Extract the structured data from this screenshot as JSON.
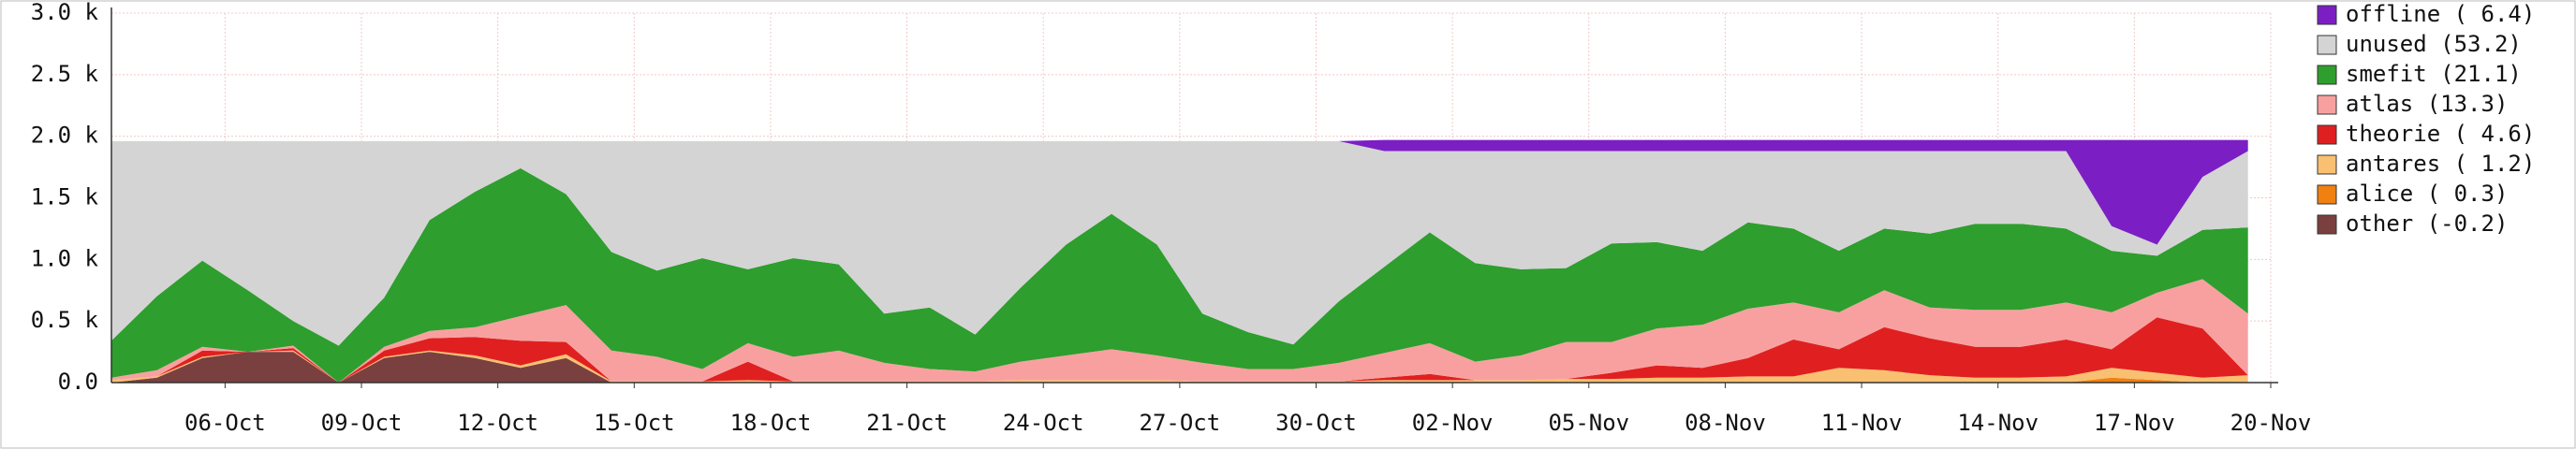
{
  "chart_data": {
    "type": "stacked_area",
    "x": [
      -2.5,
      -1.5,
      -0.5,
      0.5,
      1.5,
      2.5,
      3.5,
      4.5,
      5.5,
      6.5,
      7.5,
      8.5,
      9.5,
      10.5,
      11.5,
      12.5,
      13.5,
      14.5,
      15.5,
      16.5,
      17.5,
      18.5,
      19.5,
      20.5,
      21.5,
      22.5,
      23.5,
      24.5,
      25.5,
      26.5,
      27.5,
      28.5,
      29.5,
      30.5,
      31.5,
      32.5,
      33.5,
      34.5,
      35.5,
      36.5,
      37.5,
      38.5,
      39.5,
      40.5,
      41.5,
      42.5,
      43.5,
      44.5
    ],
    "xlim": [
      -2.5,
      45
    ],
    "xticks": [
      {
        "value": 0,
        "label": "06-Oct"
      },
      {
        "value": 3,
        "label": "09-Oct"
      },
      {
        "value": 6,
        "label": "12-Oct"
      },
      {
        "value": 9,
        "label": "15-Oct"
      },
      {
        "value": 12,
        "label": "18-Oct"
      },
      {
        "value": 15,
        "label": "21-Oct"
      },
      {
        "value": 18,
        "label": "24-Oct"
      },
      {
        "value": 21,
        "label": "27-Oct"
      },
      {
        "value": 24,
        "label": "30-Oct"
      },
      {
        "value": 27,
        "label": "02-Nov"
      },
      {
        "value": 30,
        "label": "05-Nov"
      },
      {
        "value": 33,
        "label": "08-Nov"
      },
      {
        "value": 36,
        "label": "11-Nov"
      },
      {
        "value": 39,
        "label": "14-Nov"
      },
      {
        "value": 42,
        "label": "17-Nov"
      },
      {
        "value": 45,
        "label": "20-Nov"
      }
    ],
    "ylim": [
      0,
      3000
    ],
    "yticks": [
      {
        "value": 0,
        "label": "0.0"
      },
      {
        "value": 500,
        "label": "0.5 k"
      },
      {
        "value": 1000,
        "label": "1.0 k"
      },
      {
        "value": 1500,
        "label": "1.5 k"
      },
      {
        "value": 2000,
        "label": "2.0 k"
      },
      {
        "value": 2500,
        "label": "2.5 k"
      },
      {
        "value": 3000,
        "label": "3.0 k"
      }
    ],
    "grid": true,
    "legend": "right",
    "series": [
      {
        "name": "offline ( 6.4)",
        "color": "#7b1fc4",
        "values": [
          0,
          0,
          0,
          0,
          0,
          0,
          0,
          0,
          0,
          0,
          0,
          0,
          0,
          0,
          0,
          0,
          0,
          0,
          0,
          0,
          0,
          0,
          0,
          0,
          0,
          0,
          0,
          0,
          90,
          90,
          90,
          90,
          90,
          90,
          90,
          90,
          90,
          90,
          90,
          90,
          90,
          90,
          90,
          90,
          700,
          850,
          300,
          90
        ]
      },
      {
        "name": "unused (53.2)",
        "color": "#d4d4d4",
        "values": [
          1620,
          1260,
          970,
          1210,
          1460,
          1660,
          1270,
          640,
          410,
          220,
          430,
          900,
          1050,
          950,
          1040,
          950,
          1000,
          1400,
          1350,
          1570,
          1190,
          840,
          590,
          840,
          1400,
          1550,
          1650,
          1300,
          940,
          660,
          910,
          960,
          950,
          750,
          740,
          810,
          580,
          630,
          810,
          630,
          670,
          590,
          590,
          630,
          200,
          90,
          430,
          620
        ]
      },
      {
        "name": "smefit (21.1)",
        "color": "#2e9e2e",
        "values": [
          300,
          600,
          700,
          500,
          200,
          300,
          400,
          900,
          1100,
          1200,
          900,
          800,
          700,
          900,
          600,
          800,
          700,
          400,
          500,
          300,
          600,
          900,
          1100,
          900,
          400,
          300,
          200,
          500,
          700,
          900,
          800,
          700,
          600,
          800,
          700,
          600,
          700,
          600,
          500,
          500,
          600,
          700,
          700,
          600,
          500,
          300,
          400,
          700
        ]
      },
      {
        "name": "atlas (13.3)",
        "color": "#f8a0a0",
        "values": [
          20,
          50,
          30,
          0,
          20,
          0,
          30,
          60,
          80,
          200,
          300,
          250,
          200,
          100,
          150,
          200,
          250,
          150,
          100,
          80,
          150,
          200,
          250,
          200,
          150,
          100,
          100,
          150,
          200,
          250,
          150,
          200,
          300,
          250,
          300,
          350,
          400,
          300,
          300,
          300,
          250,
          300,
          300,
          300,
          300,
          200,
          400,
          500
        ]
      },
      {
        "name": "theorie ( 4.6)",
        "color": "#e02020",
        "values": [
          0,
          0,
          50,
          0,
          20,
          0,
          50,
          100,
          150,
          200,
          100,
          0,
          0,
          0,
          150,
          0,
          0,
          0,
          0,
          0,
          0,
          0,
          0,
          0,
          0,
          0,
          0,
          0,
          20,
          50,
          0,
          0,
          0,
          50,
          100,
          80,
          150,
          300,
          150,
          350,
          300,
          250,
          250,
          300,
          150,
          450,
          400,
          0
        ]
      },
      {
        "name": "antares ( 1.2)",
        "color": "#f8c070",
        "values": [
          20,
          10,
          10,
          0,
          10,
          0,
          10,
          10,
          20,
          20,
          30,
          10,
          10,
          10,
          20,
          10,
          10,
          10,
          10,
          10,
          20,
          20,
          20,
          20,
          10,
          10,
          10,
          10,
          20,
          20,
          20,
          20,
          30,
          30,
          40,
          40,
          50,
          50,
          120,
          100,
          60,
          40,
          40,
          50,
          80,
          60,
          40,
          60
        ]
      },
      {
        "name": "alice ( 0.3)",
        "color": "#f08010",
        "values": [
          0,
          0,
          0,
          0,
          0,
          0,
          0,
          0,
          0,
          0,
          0,
          0,
          0,
          0,
          0,
          0,
          0,
          0,
          0,
          0,
          0,
          0,
          0,
          0,
          0,
          0,
          0,
          0,
          0,
          0,
          0,
          0,
          0,
          0,
          0,
          0,
          0,
          0,
          0,
          0,
          0,
          0,
          0,
          0,
          40,
          20,
          0,
          0
        ]
      },
      {
        "name": "other (-0.2)",
        "color": "#7a4040",
        "values": [
          0,
          40,
          200,
          250,
          250,
          0,
          200,
          250,
          200,
          120,
          200,
          0,
          0,
          0,
          0,
          0,
          0,
          0,
          0,
          0,
          0,
          0,
          0,
          0,
          0,
          0,
          0,
          0,
          0,
          0,
          0,
          0,
          0,
          0,
          0,
          0,
          0,
          0,
          0,
          0,
          0,
          0,
          0,
          0,
          0,
          0,
          0,
          0
        ]
      }
    ]
  }
}
